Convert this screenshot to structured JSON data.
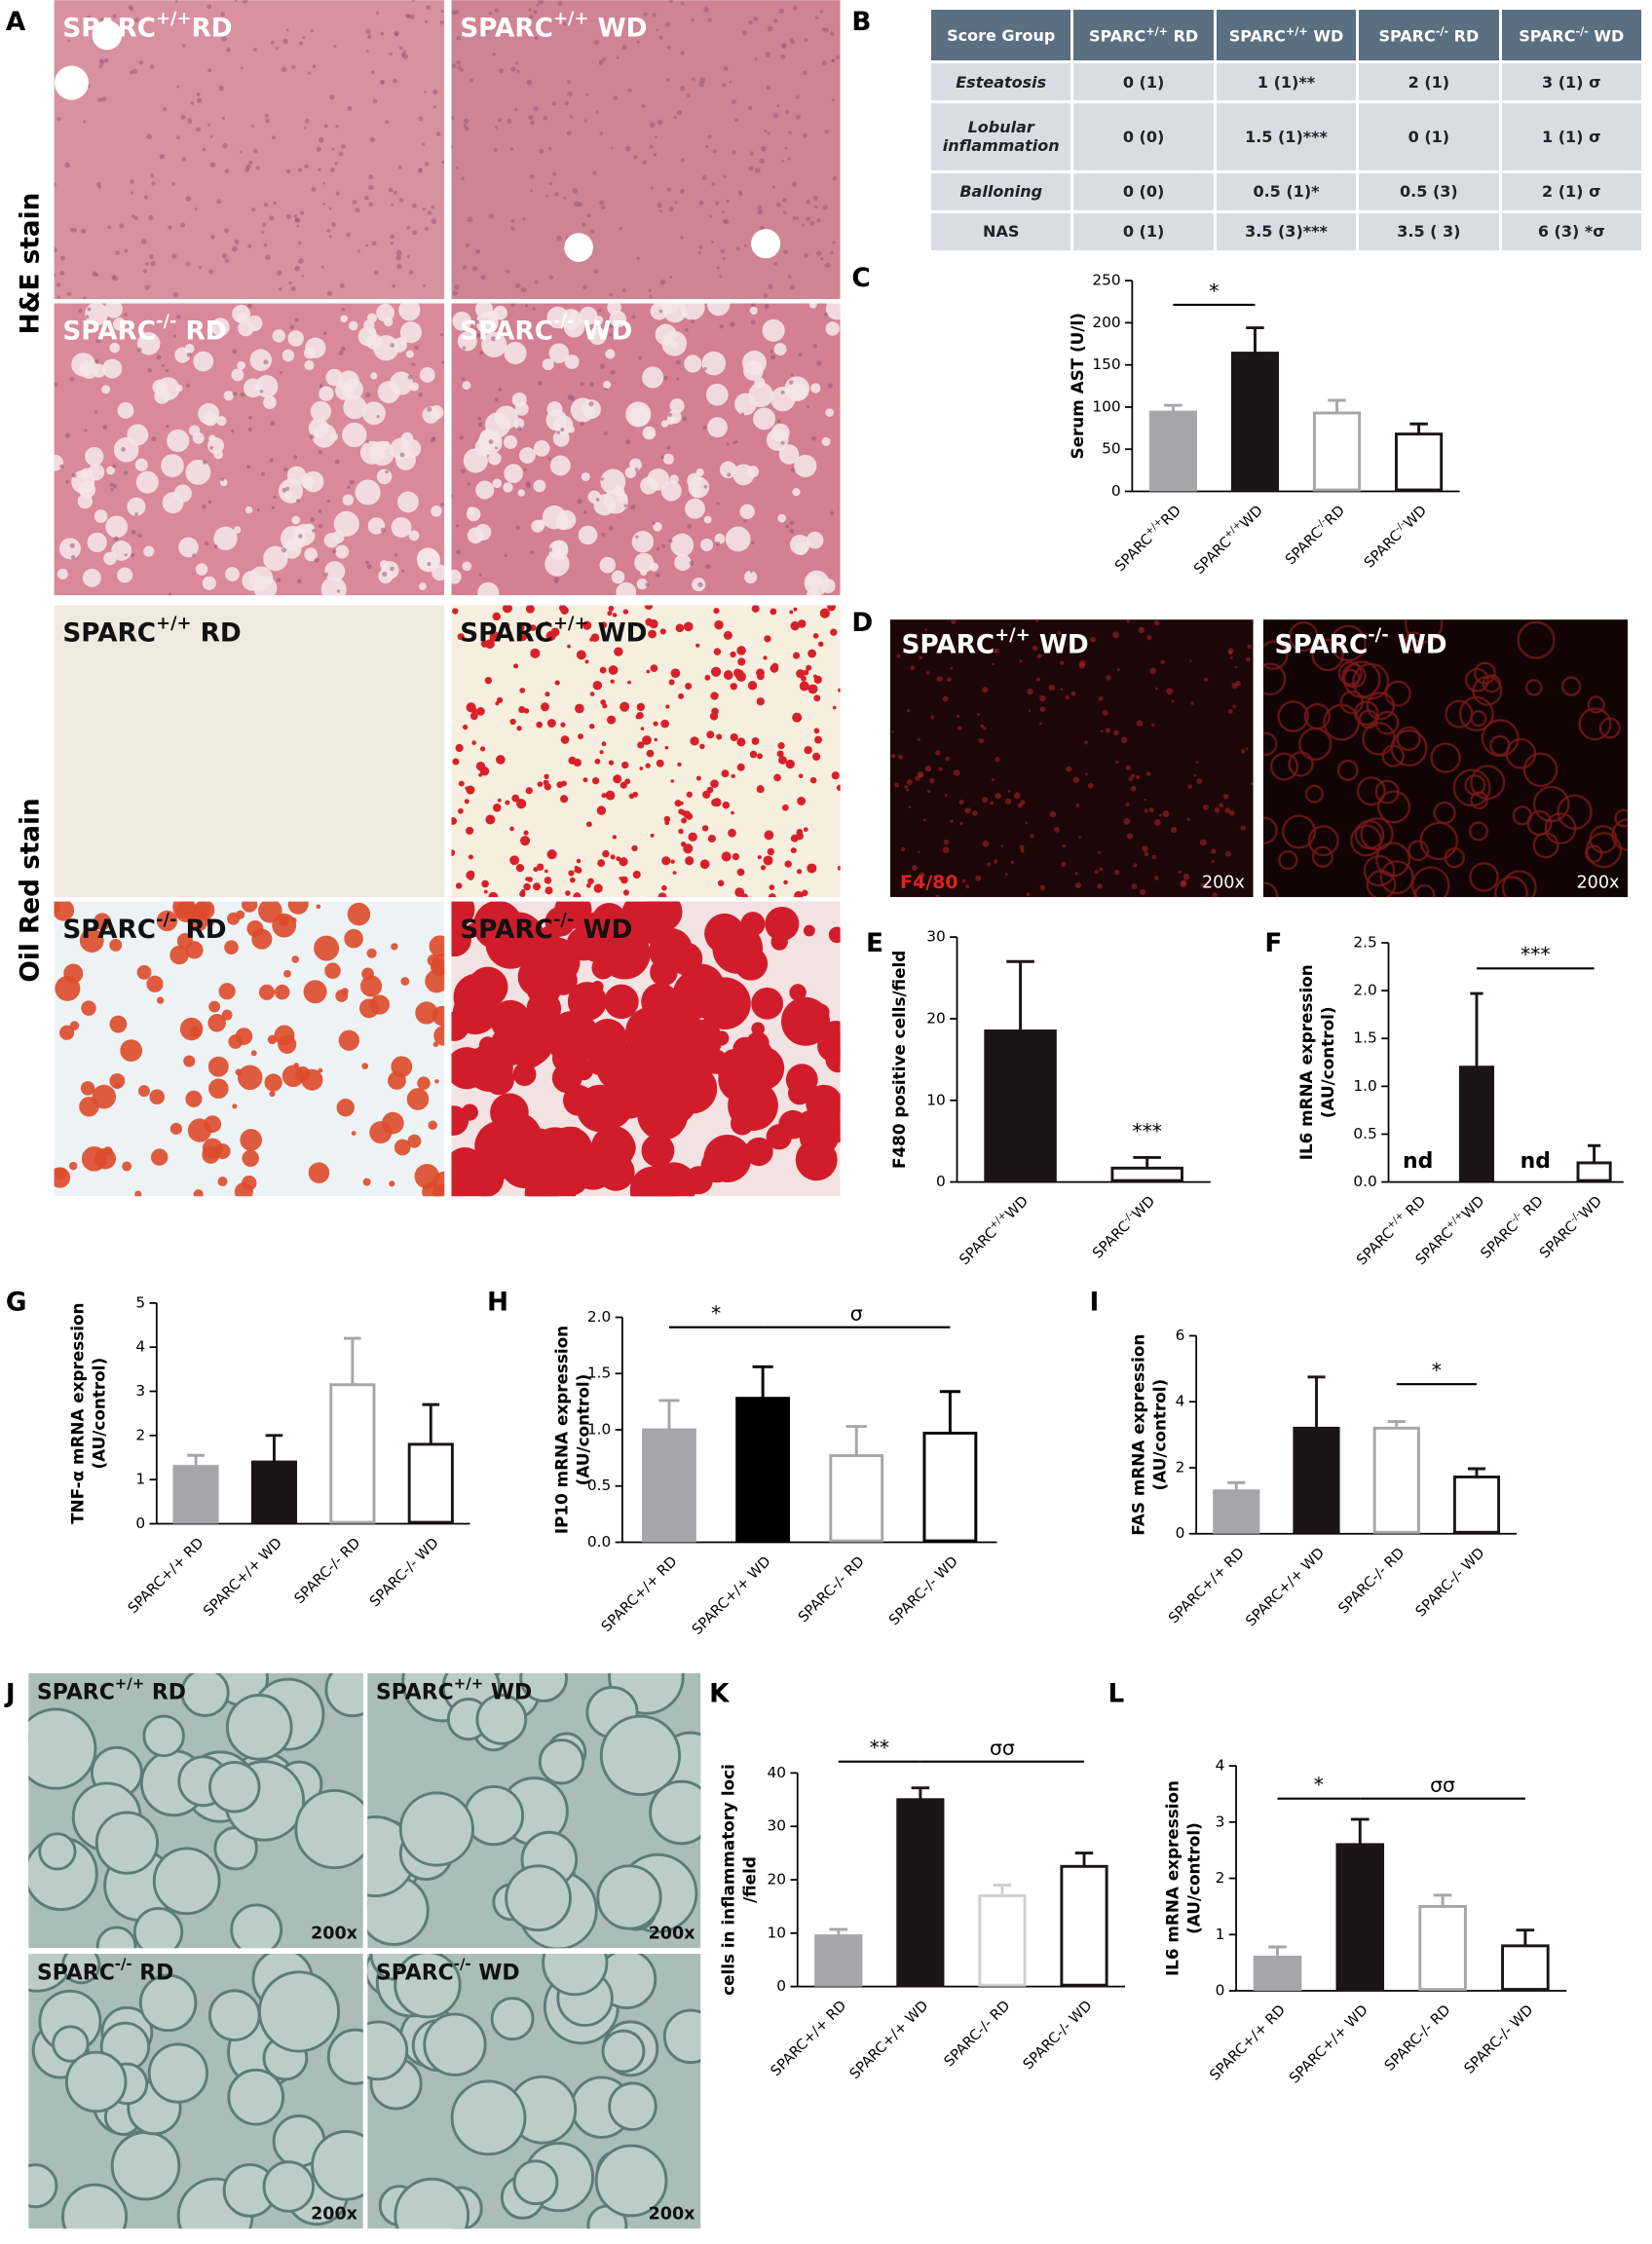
{
  "panel_a": {
    "label": "A",
    "stains": [
      "H&E stain",
      "Oil Red stain"
    ],
    "images": [
      {
        "text": "SPARC",
        "sup": "+/+",
        "after": "RD"
      },
      {
        "text": "SPARC",
        "sup": "+/+",
        "after": " WD"
      },
      {
        "text": "SPARC",
        "sup": "-/-",
        "after": " RD"
      },
      {
        "text": "SPARC",
        "sup": "-/-",
        "after": " WD"
      },
      {
        "text": "SPARC",
        "sup": "+/+",
        "after": " RD"
      },
      {
        "text": "SPARC",
        "sup": "+/+",
        "after": " WD"
      },
      {
        "text": "SPARC",
        "sup": "-/-",
        "after": " RD"
      },
      {
        "text": "SPARC",
        "sup": "-/-",
        "after": " WD"
      }
    ]
  },
  "table": {
    "label": "B",
    "header": [
      "Score Group",
      {
        "text": "SPARC",
        "sup": "+/+",
        "after": " RD"
      },
      {
        "text": "SPARC",
        "sup": "+/+",
        "after": " WD"
      },
      {
        "text": "SPARC",
        "sup": "-/-",
        "after": " RD"
      },
      {
        "text": "SPARC",
        "sup": "-/-",
        "after": " WD"
      }
    ],
    "rows": [
      [
        "Esteatosis",
        "0 (1)",
        "1 (1)**",
        "2 (1)",
        "3 (1) σ"
      ],
      [
        "Lobular inflammation",
        "0 (0)",
        "1.5 (1)***",
        "0 (1)",
        "1 (1) σ"
      ],
      [
        "Balloning",
        "0 (0)",
        "0.5 (1)*",
        "0.5  (3)",
        "2 (1) σ"
      ],
      [
        "NAS",
        "0 (1)",
        "3.5 (3)***",
        "3.5 ( 3)",
        "6  (3) *σ"
      ]
    ]
  },
  "panel_d": {
    "label": "D",
    "images": [
      {
        "text": "SPARC",
        "sup": "+/+",
        "after": " WD"
      },
      {
        "text": "SPARC",
        "sup": "-/-",
        "after": " WD"
      }
    ],
    "stain": "F4/80",
    "magnification": [
      "200x",
      "200x"
    ]
  },
  "panel_j": {
    "label": "J",
    "images": [
      {
        "text": "SPARC",
        "sup": "+/+",
        "after": " RD"
      },
      {
        "text": "SPARC",
        "sup": "+/+",
        "after": " WD"
      },
      {
        "text": "SPARC",
        "sup": "-/-",
        "after": " RD"
      },
      {
        "text": "SPARC",
        "sup": "-/-",
        "after": " WD"
      }
    ],
    "magnification": [
      "200x",
      "200x",
      "200x",
      "200x"
    ]
  },
  "chart_data": [
    {
      "panel": "C",
      "type": "bar",
      "y_label": [
        "Serum AST (U/l)"
      ],
      "categories": [
        {
          "text": "SPARC",
          "sup": "+/+",
          "after": "RD"
        },
        {
          "text": "SPARC",
          "sup": "+/+",
          "after": "WD"
        },
        {
          "text": "SPARC",
          "sup": "-/-",
          "after": "RD"
        },
        {
          "text": "SPARC",
          "sup": "-/-",
          "after": "WD"
        }
      ],
      "values": [
        94,
        164,
        93,
        68
      ],
      "errors": [
        8,
        30,
        15,
        12
      ],
      "bar_fills": [
        "#a6a6aa",
        "#1c1416",
        "#ffffff",
        "#ffffff"
      ],
      "bar_strokes": [
        "#a6a6aa",
        "#1c1416",
        "#a6a6aa",
        "#1c1416"
      ],
      "ylim": [
        0,
        250
      ],
      "yticks": [
        0,
        50,
        100,
        150,
        200,
        250
      ],
      "annotations": [
        "*"
      ]
    },
    {
      "panel": "E",
      "type": "bar",
      "y_label": [
        "F480 positive cells/field"
      ],
      "categories": [
        {
          "text": "SPARC",
          "sup": "+/+",
          "after": "WD"
        },
        {
          "text": "SPARC",
          "sup": "-/-",
          "after": "WD"
        }
      ],
      "values": [
        18.5,
        1.7
      ],
      "errors": [
        8.5,
        1.3
      ],
      "bar_fills": [
        "#1c1416",
        "#ffffff"
      ],
      "bar_strokes": [
        "#1c1416",
        "#1c1416"
      ],
      "ylim": [
        0,
        30
      ],
      "yticks": [
        0,
        10,
        20,
        30
      ],
      "annotations": [
        "***"
      ]
    },
    {
      "panel": "F",
      "type": "bar",
      "y_label": [
        "IL6 mRNA expression",
        "(AU/control)"
      ],
      "categories": [
        {
          "text": "SPARC",
          "sup": "+/+",
          "after": " RD"
        },
        {
          "text": "SPARC",
          "sup": "+/+",
          "after": "WD"
        },
        {
          "text": "SPARC",
          "sup": "-/-",
          "after": " RD"
        },
        {
          "text": "SPARC",
          "sup": "-/-",
          "after": "WD"
        }
      ],
      "values": [
        null,
        1.2,
        null,
        0.2
      ],
      "value_labels": [
        "nd",
        null,
        "nd",
        null
      ],
      "errors": [
        null,
        0.77,
        null,
        0.18
      ],
      "bar_fills": [
        null,
        "#1c1416",
        null,
        "#ffffff"
      ],
      "bar_strokes": [
        null,
        "#1c1416",
        null,
        "#1c1416"
      ],
      "ylim": [
        0,
        2.5
      ],
      "yticks": [
        {
          "value": 0,
          "label": "0.0"
        },
        0.5,
        {
          "value": 1,
          "label": "1.0"
        },
        1.5,
        {
          "value": 2,
          "label": "2.0"
        },
        2.5
      ],
      "annotations": [
        "***"
      ]
    },
    {
      "panel": "G",
      "type": "bar",
      "y_label": [
        "TNF-α mRNA expression",
        "(AU/control)"
      ],
      "categories": [
        "SPARC+/+ RD",
        "SPARC+/+ WD",
        "SPARC-/- RD",
        "SPARC-/- WD"
      ],
      "values": [
        1.3,
        1.4,
        3.15,
        1.8
      ],
      "errors": [
        0.25,
        0.6,
        1.05,
        0.9
      ],
      "bar_fills": [
        "#a6a6aa",
        "#1c1416",
        "#ffffff",
        "#ffffff"
      ],
      "bar_strokes": [
        "#a6a6aa",
        "#1c1416",
        "#a6a6aa",
        "#1c1416"
      ],
      "ylim": [
        0,
        5
      ],
      "yticks": [
        0,
        1,
        2,
        3,
        4,
        5
      ]
    },
    {
      "panel": "H",
      "type": "bar",
      "y_label": [
        "IP10 mRNA expression",
        "(AU/control)"
      ],
      "categories": [
        "SPARC+/+ RD",
        "SPARC+/+ WD",
        "SPARC-/- RD",
        "SPARC-/- WD"
      ],
      "values": [
        1.0,
        1.28,
        0.77,
        0.97
      ],
      "errors": [
        0.26,
        0.28,
        0.26,
        0.37
      ],
      "bar_fills": [
        "#a6a6aa",
        "#000000",
        "#ffffff",
        "#ffffff"
      ],
      "bar_strokes": [
        "#a6a6aa",
        "#000000",
        "#a6a6aa",
        "#000000"
      ],
      "ylim": [
        0,
        2
      ],
      "yticks": [
        {
          "value": 0,
          "label": "0.0"
        },
        0.5,
        {
          "value": 1,
          "label": "1.0"
        },
        1.5,
        {
          "value": 2,
          "label": "2.0"
        }
      ],
      "annotations": [
        "*",
        "σ"
      ]
    },
    {
      "panel": "I",
      "type": "bar",
      "y_label": [
        "FAS mRNA expression",
        "(AU/control)"
      ],
      "categories": [
        "SPARC+/+ RD",
        "SPARC+/+ WD",
        "SPARC-/- RD",
        "SPARC-/- WD"
      ],
      "values": [
        1.3,
        3.2,
        3.2,
        1.72
      ],
      "errors": [
        0.25,
        1.55,
        0.2,
        0.25
      ],
      "bar_fills": [
        "#a6a6aa",
        "#1c1416",
        "#ffffff",
        "#ffffff"
      ],
      "bar_strokes": [
        "#a6a6aa",
        "#1c1416",
        "#a6a6aa",
        "#1c1416"
      ],
      "ylim": [
        0,
        6
      ],
      "yticks": [
        0,
        2,
        4,
        6
      ],
      "annotations": [
        "*"
      ]
    },
    {
      "panel": "K",
      "type": "bar",
      "y_label": [
        "cells in inflammatory loci",
        "/field"
      ],
      "categories": [
        "SPARC+/+ RD",
        "SPARC+/+ WD",
        "SPARC-/- RD",
        "SPARC-/- WD"
      ],
      "values": [
        9.5,
        35,
        17,
        22.5
      ],
      "errors": [
        1.2,
        2.2,
        2,
        2.5
      ],
      "bar_fills": [
        "#a6a6aa",
        "#1c1416",
        "#ffffff",
        "#ffffff"
      ],
      "bar_strokes": [
        "#a6a6aa",
        "#1c1416",
        "#d0d0d0",
        "#1c1416"
      ],
      "ylim": [
        0,
        40
      ],
      "yticks": [
        0,
        10,
        20,
        30,
        40
      ],
      "annotations": [
        "**",
        "σσ"
      ]
    },
    {
      "panel": "L",
      "type": "bar",
      "y_label": [
        "IL6 mRNA expression",
        "(AU/control)"
      ],
      "categories": [
        "SPARC+/+ RD",
        "SPARC+/+ WD",
        "SPARC-/- RD",
        "SPARC-/- WD"
      ],
      "values": [
        0.6,
        2.6,
        1.5,
        0.8
      ],
      "errors": [
        0.18,
        0.45,
        0.2,
        0.28
      ],
      "bar_fills": [
        "#a6a6aa",
        "#1c1416",
        "#ffffff",
        "#ffffff"
      ],
      "bar_strokes": [
        "#a6a6aa",
        "#1c1416",
        "#a6a6aa",
        "#1c1416"
      ],
      "ylim": [
        0,
        4
      ],
      "yticks": [
        0,
        1,
        2,
        3,
        4
      ],
      "annotations": [
        "*",
        "σσ"
      ]
    }
  ]
}
